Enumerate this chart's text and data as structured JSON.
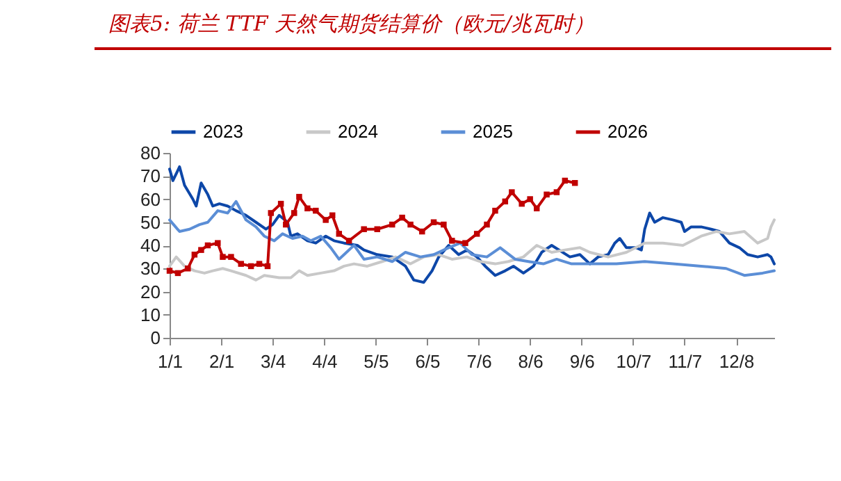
{
  "chart_data": {
    "type": "line",
    "title": "图表5:  荷兰 TTF 天然气期货结算价（欧元/兆瓦时）",
    "xlim": [
      "--01-01",
      "--12-31"
    ],
    "xticks": [
      {
        "value": "--01-01",
        "label": "1/1"
      },
      {
        "value": "--02-01",
        "label": "2/1"
      },
      {
        "value": "--03-04",
        "label": "3/4"
      },
      {
        "value": "--04-04",
        "label": "4/4"
      },
      {
        "value": "--05-05",
        "label": "5/5"
      },
      {
        "value": "--06-05",
        "label": "6/5"
      },
      {
        "value": "--07-06",
        "label": "7/6"
      },
      {
        "value": "--08-06",
        "label": "8/6"
      },
      {
        "value": "--09-06",
        "label": "9/6"
      },
      {
        "value": "--10-07",
        "label": "10/7"
      },
      {
        "value": "--11-07",
        "label": "11/7"
      },
      {
        "value": "--12-08",
        "label": "12/8"
      }
    ],
    "ylim": [
      0,
      80
    ],
    "yticks": [
      0,
      10,
      20,
      30,
      40,
      50,
      60,
      70,
      80
    ],
    "grid": false,
    "legend": "top",
    "marker": "none",
    "line_style": "solid",
    "series": [
      {
        "name": "2023",
        "color": "#0d47a8",
        "x": [
          "--01-01",
          "--01-03",
          "--01-07",
          "--01-10",
          "--01-15",
          "--01-17",
          "--01-20",
          "--01-24",
          "--01-27",
          "--01-31",
          "--02-05",
          "--02-10",
          "--02-16",
          "--02-22",
          "--02-28",
          "--03-04",
          "--03-08",
          "--03-13",
          "--03-15",
          "--03-19",
          "--03-25",
          "--03-30",
          "--04-05",
          "--04-10",
          "--04-16",
          "--04-24",
          "--04-28",
          "--05-06",
          "--05-15",
          "--05-23",
          "--05-28",
          "--06-03",
          "--06-08",
          "--06-12",
          "--06-18",
          "--06-24",
          "--06-29",
          "--07-05",
          "--07-10",
          "--07-16",
          "--07-22",
          "--07-27",
          "--08-02",
          "--08-08",
          "--08-13",
          "--08-19",
          "--08-30",
          "--09-05",
          "--09-11",
          "--09-16",
          "--09-22",
          "--09-26",
          "--09-29",
          "--10-03",
          "--10-09",
          "--10-12",
          "--10-14",
          "--10-17",
          "--10-20",
          "--10-25",
          "--10-31",
          "--11-05",
          "--11-07",
          "--11-11",
          "--11-17",
          "--11-23",
          "--11-28",
          "--12-04",
          "--12-10",
          "--12-15",
          "--12-21",
          "--12-27",
          "--12-29",
          "--12-31"
        ],
        "values": [
          73,
          68,
          74,
          66,
          60,
          57,
          67,
          62,
          57,
          58,
          57,
          55,
          53,
          50,
          47,
          49,
          53,
          50,
          44,
          45,
          42,
          41,
          44,
          42,
          41,
          40,
          38,
          36,
          35,
          31,
          25,
          24,
          29,
          35,
          40,
          36,
          38,
          35,
          31,
          27,
          29,
          31,
          28,
          31,
          37,
          40,
          35,
          36,
          32,
          35,
          36,
          41,
          43,
          39,
          39,
          38,
          47,
          54,
          50,
          52,
          51,
          50,
          46,
          48,
          48,
          47,
          46,
          41,
          39,
          36,
          35,
          36,
          35,
          32
        ]
      },
      {
        "name": "2024",
        "color": "#c8c8c8",
        "x": [
          "--01-01",
          "--01-05",
          "--01-10",
          "--01-16",
          "--01-22",
          "--01-27",
          "--02-02",
          "--02-07",
          "--02-16",
          "--02-22",
          "--02-27",
          "--03-08",
          "--03-15",
          "--03-20",
          "--03-25",
          "--04-02",
          "--04-10",
          "--04-16",
          "--04-22",
          "--04-30",
          "--05-09",
          "--05-17",
          "--05-26",
          "--06-03",
          "--06-12",
          "--06-20",
          "--06-29",
          "--07-07",
          "--07-16",
          "--07-24",
          "--08-02",
          "--08-10",
          "--08-19",
          "--08-27",
          "--09-05",
          "--09-11",
          "--09-22",
          "--10-03",
          "--10-14",
          "--10-25",
          "--11-06",
          "--11-17",
          "--11-26",
          "--12-04",
          "--12-13",
          "--12-21",
          "--12-27",
          "--12-29",
          "--12-31"
        ],
        "values": [
          31,
          35,
          31,
          29,
          28,
          29,
          30,
          29,
          27,
          25,
          27,
          26,
          26,
          29,
          27,
          28,
          29,
          31,
          32,
          31,
          33,
          35,
          32,
          35,
          36,
          34,
          35,
          33,
          32,
          33,
          35,
          40,
          37,
          38,
          39,
          37,
          35,
          37,
          41,
          41,
          40,
          44,
          46,
          45,
          46,
          41,
          43,
          48,
          51
        ]
      },
      {
        "name": "2025",
        "color": "#5b8ed6",
        "x": [
          "--01-01",
          "--01-07",
          "--01-13",
          "--01-19",
          "--01-24",
          "--01-30",
          "--02-05",
          "--02-10",
          "--02-16",
          "--02-22",
          "--02-27",
          "--03-05",
          "--03-10",
          "--03-16",
          "--03-22",
          "--03-27",
          "--04-02",
          "--04-08",
          "--04-13",
          "--04-22",
          "--04-28",
          "--05-06",
          "--05-15",
          "--05-23",
          "--06-01",
          "--06-09",
          "--06-18",
          "--06-25",
          "--07-02",
          "--07-11",
          "--07-19",
          "--07-28",
          "--08-05",
          "--08-14",
          "--08-22",
          "--08-31",
          "--09-11",
          "--09-27",
          "--10-14",
          "--10-31",
          "--11-17",
          "--12-02",
          "--12-13",
          "--12-24",
          "--12-31"
        ],
        "values": [
          51,
          46,
          47,
          49,
          50,
          55,
          54,
          59,
          51,
          48,
          44,
          42,
          45,
          43,
          44,
          42,
          44,
          39,
          34,
          40,
          34,
          35,
          33,
          37,
          35,
          36,
          39,
          41,
          36,
          35,
          39,
          34,
          33,
          32,
          34,
          32,
          32,
          32,
          33,
          32,
          31,
          30,
          27,
          28,
          29
        ]
      },
      {
        "name": "2026",
        "color": "#c00000",
        "marker": "square",
        "x": [
          "--01-01",
          "--01-06",
          "--01-12",
          "--01-16",
          "--01-20",
          "--01-24",
          "--01-30",
          "--02-02",
          "--02-07",
          "--02-13",
          "--02-19",
          "--02-24",
          "--03-01",
          "--03-03",
          "--03-09",
          "--03-12",
          "--03-17",
          "--03-20",
          "--03-25",
          "--03-30",
          "--04-05",
          "--04-09",
          "--04-13",
          "--04-19",
          "--04-28",
          "--05-06",
          "--05-15",
          "--05-21",
          "--05-26",
          "--06-02",
          "--06-09",
          "--06-15",
          "--06-20",
          "--06-28",
          "--07-05",
          "--07-11",
          "--07-16",
          "--07-22",
          "--07-26",
          "--08-01",
          "--08-06",
          "--08-10",
          "--08-16",
          "--08-22",
          "--08-27",
          "--09-02"
        ],
        "values": [
          29,
          28,
          30,
          36,
          38,
          40,
          41,
          35,
          35,
          32,
          31,
          32,
          31,
          54,
          58,
          49,
          54,
          61,
          56,
          55,
          51,
          53,
          45,
          42,
          47,
          47,
          49,
          52,
          49,
          46,
          50,
          49,
          42,
          41,
          45,
          49,
          55,
          59,
          63,
          58,
          60,
          56,
          62,
          63,
          68,
          67
        ]
      }
    ]
  }
}
